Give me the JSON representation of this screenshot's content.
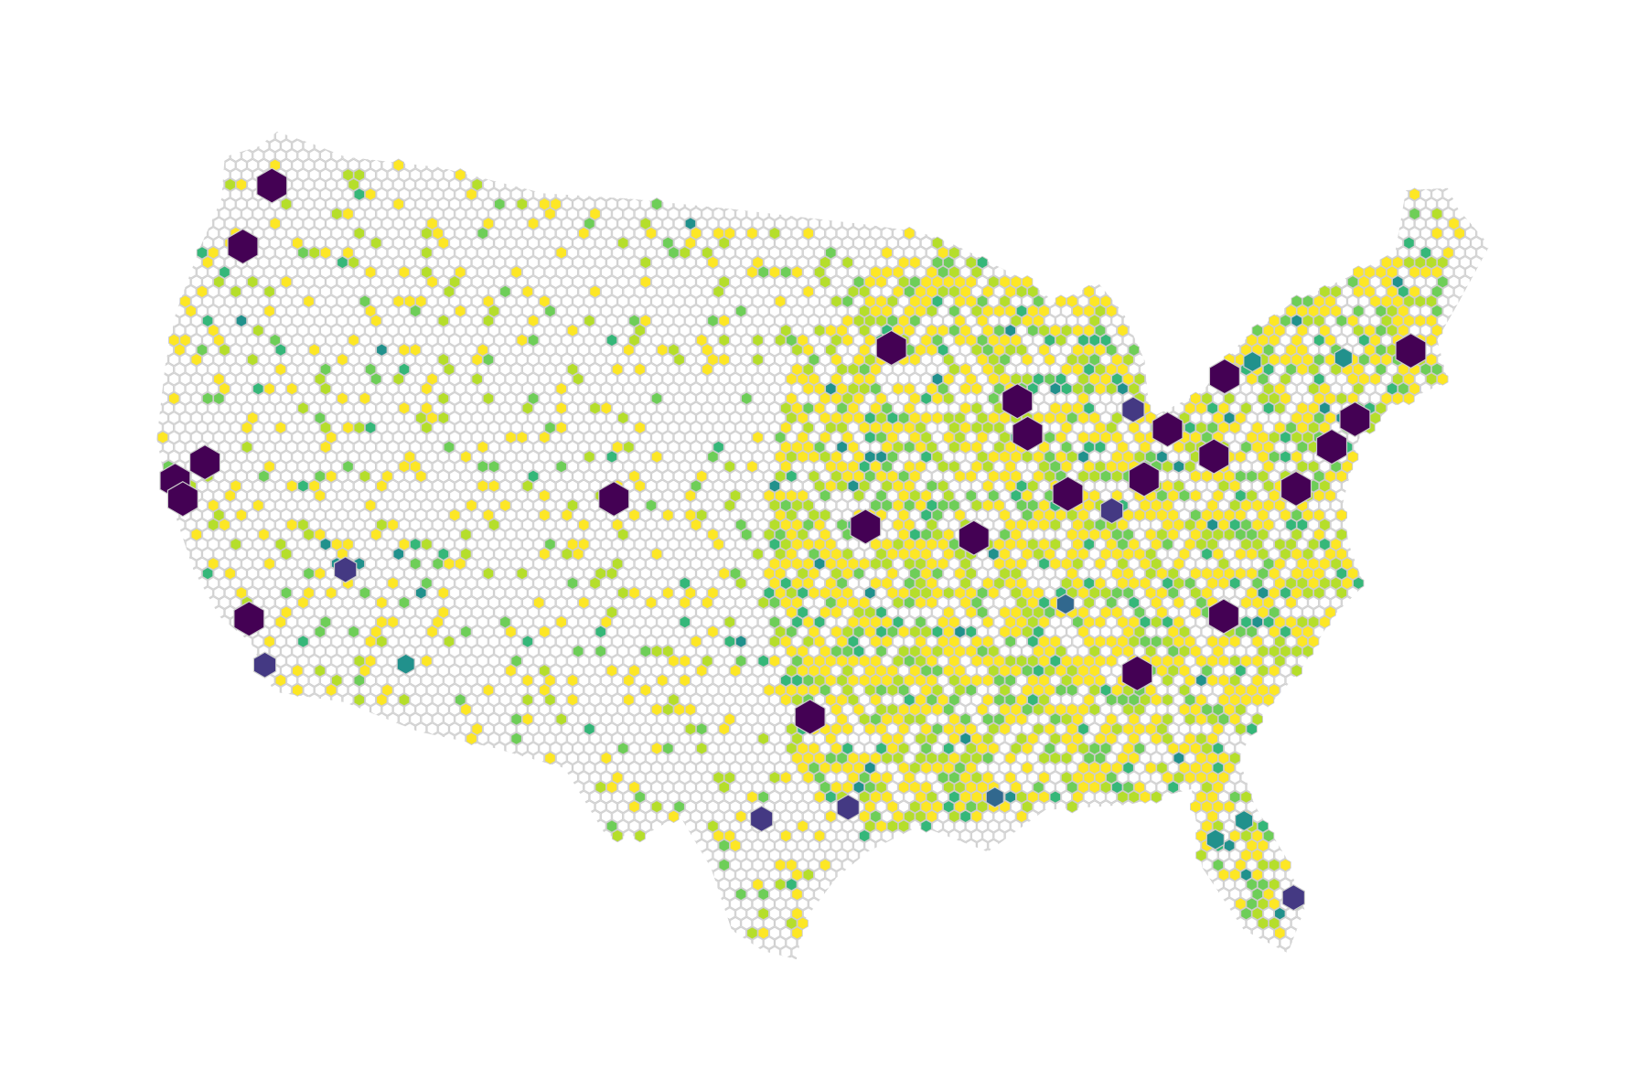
{
  "map": {
    "palette": [
      "#440154",
      "#443983",
      "#31688e",
      "#21918c",
      "#35b779",
      "#6ece58",
      "#b5de2b",
      "#fde725"
    ],
    "empty_color": "#ffffff",
    "edge_color": "#cccccc",
    "cities": [
      {
        "lon": -122.3,
        "lat": 47.6,
        "level": 0
      },
      {
        "lon": -122.7,
        "lat": 45.5,
        "level": 0
      },
      {
        "lon": -122.4,
        "lat": 37.8,
        "level": 0
      },
      {
        "lon": -121.5,
        "lat": 38.6,
        "level": 0
      },
      {
        "lon": -121.9,
        "lat": 37.3,
        "level": 0
      },
      {
        "lon": -118.2,
        "lat": 34.05,
        "level": 0
      },
      {
        "lon": -117.2,
        "lat": 32.7,
        "level": 1
      },
      {
        "lon": -115.1,
        "lat": 36.2,
        "level": 1
      },
      {
        "lon": -112.1,
        "lat": 33.5,
        "level": 3
      },
      {
        "lon": -105.0,
        "lat": 39.7,
        "level": 0
      },
      {
        "lon": -93.3,
        "lat": 45.0,
        "level": 0
      },
      {
        "lon": -87.6,
        "lat": 41.9,
        "level": 0
      },
      {
        "lon": -87.9,
        "lat": 43.0,
        "level": 0
      },
      {
        "lon": -83.0,
        "lat": 42.3,
        "level": 1
      },
      {
        "lon": -81.7,
        "lat": 41.5,
        "level": 0
      },
      {
        "lon": -80.0,
        "lat": 40.4,
        "level": 0
      },
      {
        "lon": -74.0,
        "lat": 40.7,
        "level": 0
      },
      {
        "lon": -71.0,
        "lat": 42.4,
        "level": 0
      },
      {
        "lon": -75.2,
        "lat": 40.0,
        "level": 0
      },
      {
        "lon": -77.0,
        "lat": 38.9,
        "level": 0
      },
      {
        "lon": -84.4,
        "lat": 33.7,
        "level": 0
      },
      {
        "lon": -80.8,
        "lat": 35.2,
        "level": 0
      },
      {
        "lon": -96.8,
        "lat": 32.8,
        "level": 0
      },
      {
        "lon": -95.4,
        "lat": 29.8,
        "level": 1
      },
      {
        "lon": -98.5,
        "lat": 29.4,
        "level": 1
      },
      {
        "lon": -80.2,
        "lat": 25.8,
        "level": 1
      },
      {
        "lon": -81.4,
        "lat": 28.5,
        "level": 3
      },
      {
        "lon": -82.5,
        "lat": 28.0,
        "level": 3
      },
      {
        "lon": -90.2,
        "lat": 38.6,
        "level": 0
      },
      {
        "lon": -94.6,
        "lat": 39.1,
        "level": 0
      },
      {
        "lon": -86.2,
        "lat": 39.8,
        "level": 0
      },
      {
        "lon": -83.0,
        "lat": 40.0,
        "level": 0
      },
      {
        "lon": -84.5,
        "lat": 39.1,
        "level": 1
      },
      {
        "lon": -86.8,
        "lat": 36.2,
        "level": 2
      },
      {
        "lon": -90.1,
        "lat": 30.0,
        "level": 2
      },
      {
        "lon": -78.9,
        "lat": 42.9,
        "level": 0
      },
      {
        "lon": -73.8,
        "lat": 42.7,
        "level": 3
      },
      {
        "lon": -77.6,
        "lat": 43.2,
        "level": 3
      }
    ]
  }
}
